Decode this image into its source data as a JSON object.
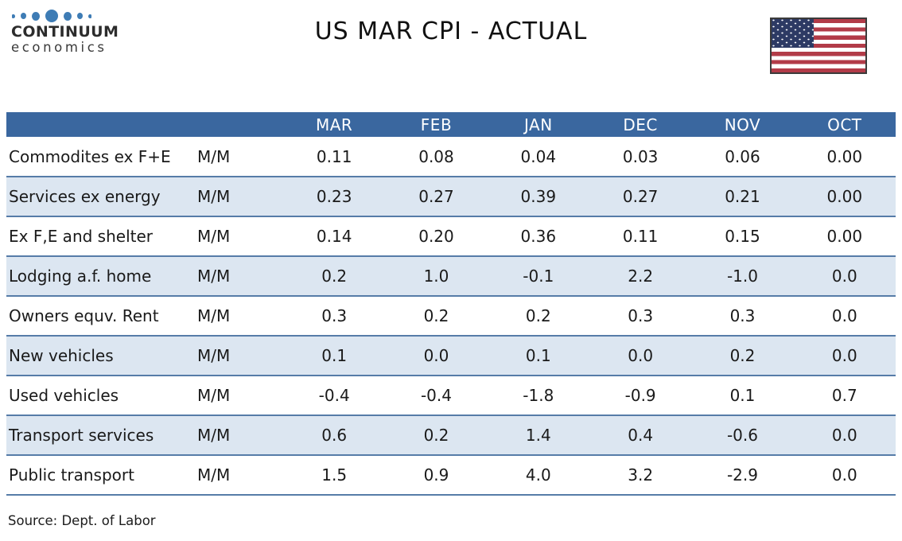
{
  "title": "US MAR CPI - ACTUAL",
  "logo": {
    "brand": "CONTINUUM",
    "sub": "economics"
  },
  "icons": {
    "flag": "us-flag-icon",
    "logo_dots": "logo-dots-icon"
  },
  "source": "Source: Dept. of Labor",
  "colors": {
    "header_bg": "#3A679F",
    "header_text": "#FFFFFF",
    "band_bg": "#DCE6F1",
    "row_line": "#567CA8",
    "text": "#1A1A1A",
    "logo_dot": "#3E7CB5",
    "flag_red": "#B23B48",
    "flag_canton": "#2D3A64"
  },
  "table": {
    "columns": [
      "MAR",
      "FEB",
      "JAN",
      "DEC",
      "NOV",
      "OCT"
    ],
    "rows": [
      {
        "label": "Commodites ex F+E",
        "freq": "M/M",
        "values": [
          "0.11",
          "0.08",
          "0.04",
          "0.03",
          "0.06",
          "0.00"
        ]
      },
      {
        "label": "Services ex energy",
        "freq": "M/M",
        "values": [
          "0.23",
          "0.27",
          "0.39",
          "0.27",
          "0.21",
          "0.00"
        ]
      },
      {
        "label": "Ex F,E and shelter",
        "freq": "M/M",
        "values": [
          "0.14",
          "0.20",
          "0.36",
          "0.11",
          "0.15",
          "0.00"
        ]
      },
      {
        "label": "Lodging a.f. home",
        "freq": "M/M",
        "values": [
          "0.2",
          "1.0",
          "-0.1",
          "2.2",
          "-1.0",
          "0.0"
        ]
      },
      {
        "label": "Owners equv. Rent",
        "freq": "M/M",
        "values": [
          "0.3",
          "0.2",
          "0.2",
          "0.3",
          "0.3",
          "0.0"
        ]
      },
      {
        "label": "New vehicles",
        "freq": "M/M",
        "values": [
          "0.1",
          "0.0",
          "0.1",
          "0.0",
          "0.2",
          "0.0"
        ]
      },
      {
        "label": "Used vehicles",
        "freq": "M/M",
        "values": [
          "-0.4",
          "-0.4",
          "-1.8",
          "-0.9",
          "0.1",
          "0.7"
        ]
      },
      {
        "label": "Transport services",
        "freq": "M/M",
        "values": [
          "0.6",
          "0.2",
          "1.4",
          "0.4",
          "-0.6",
          "0.0"
        ]
      },
      {
        "label": "Public transport",
        "freq": "M/M",
        "values": [
          "1.5",
          "0.9",
          "4.0",
          "3.2",
          "-2.9",
          "0.0"
        ]
      }
    ]
  },
  "chart_data": {
    "type": "table",
    "title": "US MAR CPI - ACTUAL",
    "columns": [
      "",
      "",
      "MAR",
      "FEB",
      "JAN",
      "DEC",
      "NOV",
      "OCT"
    ],
    "rows": [
      [
        "Commodites ex F+E",
        "M/M",
        0.11,
        0.08,
        0.04,
        0.03,
        0.06,
        0.0
      ],
      [
        "Services ex energy",
        "M/M",
        0.23,
        0.27,
        0.39,
        0.27,
        0.21,
        0.0
      ],
      [
        "Ex F,E and shelter",
        "M/M",
        0.14,
        0.2,
        0.36,
        0.11,
        0.15,
        0.0
      ],
      [
        "Lodging a.f. home",
        "M/M",
        0.2,
        1.0,
        -0.1,
        2.2,
        -1.0,
        0.0
      ],
      [
        "Owners equv. Rent",
        "M/M",
        0.3,
        0.2,
        0.2,
        0.3,
        0.3,
        0.0
      ],
      [
        "New vehicles",
        "M/M",
        0.1,
        0.0,
        0.1,
        0.0,
        0.2,
        0.0
      ],
      [
        "Used vehicles",
        "M/M",
        -0.4,
        -0.4,
        -1.8,
        -0.9,
        0.1,
        0.7
      ],
      [
        "Transport services",
        "M/M",
        0.6,
        0.2,
        1.4,
        0.4,
        -0.6,
        0.0
      ],
      [
        "Public transport",
        "M/M",
        1.5,
        0.9,
        4.0,
        3.2,
        -2.9,
        0.0
      ]
    ],
    "source": "Source: Dept. of Labor",
    "legend_position": "none",
    "grid": "row-separators"
  }
}
